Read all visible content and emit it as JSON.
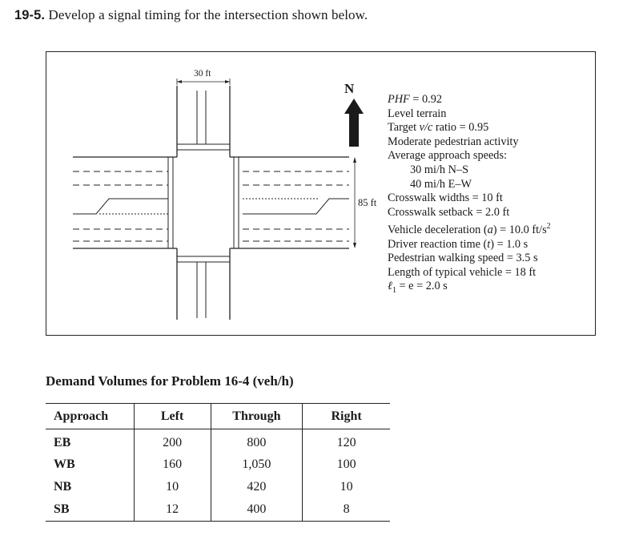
{
  "problem": {
    "number": "19-5.",
    "text": "Develop a signal timing for the intersection shown below."
  },
  "figure": {
    "north_label": "N",
    "dim_width_label": "30 ft",
    "dim_height_label": "85 ft",
    "params": {
      "phf_label": "PHF",
      "phf_value": " = 0.92",
      "terrain": "Level terrain",
      "vc_prefix": "Target ",
      "vc_var": "v/c",
      "vc_suffix": " ratio = 0.95",
      "ped_activity": "Moderate pedestrian activity",
      "speeds_heading": "Average approach speeds:",
      "speed_ns": "30 mi/h N–S",
      "speed_ew": "40 mi/h E–W",
      "crosswalk_width": "Crosswalk widths = 10 ft",
      "crosswalk_setback": "Crosswalk setback = 2.0 ft",
      "decel_prefix": "Vehicle deceleration (",
      "decel_var": "a",
      "decel_suffix": ") = 10.0 ft/s",
      "decel_exp": "2",
      "reaction_prefix": "Driver reaction time (",
      "reaction_var": "t",
      "reaction_suffix": ") = 1.0 s",
      "walk_speed": "Pedestrian walking speed = 3.5 s",
      "veh_length": "Length of typical vehicle = 18 ft",
      "lost_l": "ℓ",
      "lost_sub": "1",
      "lost_suffix": " = e = 2.0 s"
    }
  },
  "table": {
    "title": "Demand Volumes for Problem 16-4 (veh/h)",
    "headers": [
      "Approach",
      "Left",
      "Through",
      "Right"
    ],
    "rows": [
      [
        "EB",
        "200",
        "800",
        "120"
      ],
      [
        "WB",
        "160",
        "1,050",
        "100"
      ],
      [
        "NB",
        "10",
        "420",
        "10"
      ],
      [
        "SB",
        "12",
        "400",
        "8"
      ]
    ]
  }
}
